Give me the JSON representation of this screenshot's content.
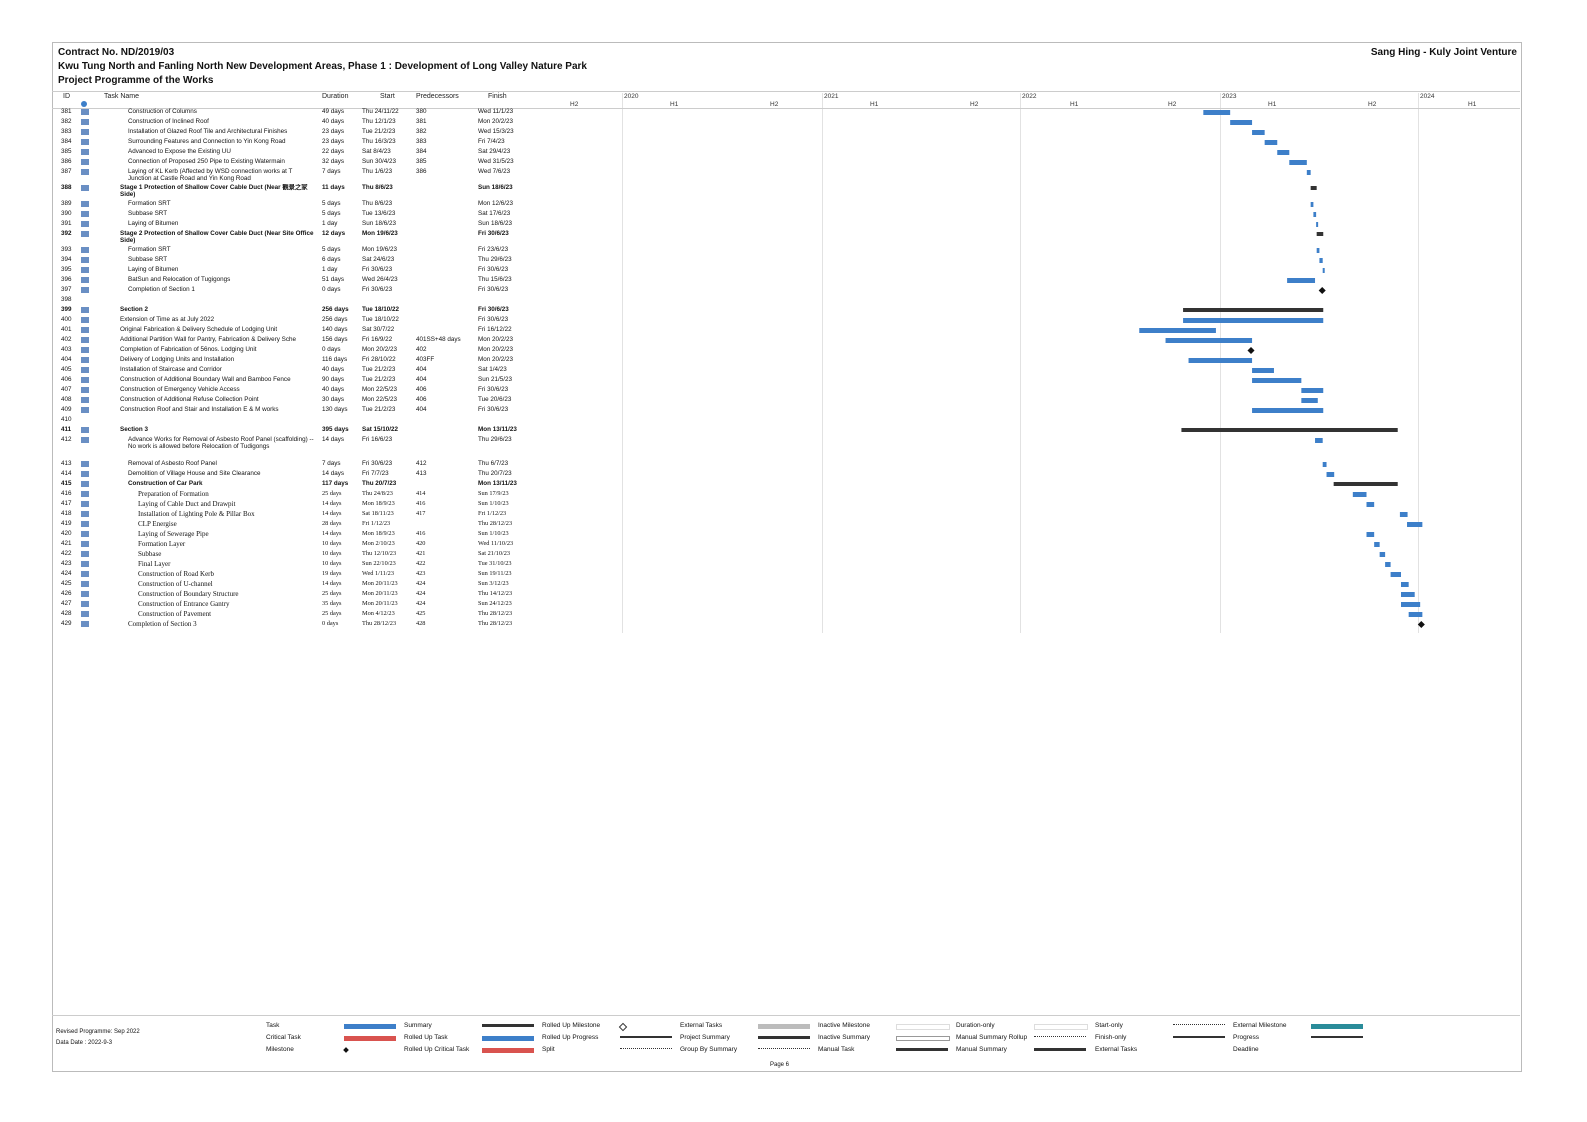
{
  "header": {
    "contract": "Contract No. ND/2019/03",
    "project": "Kwu Tung North and Fanling North New Development Areas, Phase 1 : Development of Long Valley Nature Park",
    "programme": "Project Programme of the Works",
    "company": "Sang Hing - Kuly Joint Venture"
  },
  "columns": {
    "id": "ID",
    "task_name": "Task Name",
    "duration": "Duration",
    "start": "Start",
    "predecessors": "Predecessors",
    "finish": "Finish"
  },
  "timescale": {
    "years": [
      "2020",
      "2021",
      "2022",
      "2023",
      "2024"
    ],
    "halves": [
      "H2",
      "H1",
      "H2",
      "H1",
      "H2",
      "H1",
      "H2",
      "H1",
      "H2",
      "H1"
    ]
  },
  "tasks": [
    {
      "id": "381",
      "name": "Construction of Columns",
      "level": 2,
      "dur": "49 days",
      "start": "Thu 24/11/22",
      "pred": "380",
      "finish": "Wed 11/1/23",
      "bar": {
        "s": "2022-11-24",
        "f": "2023-01-11",
        "t": "task"
      }
    },
    {
      "id": "382",
      "name": "Construction of Inclined Roof",
      "level": 2,
      "dur": "40 days",
      "start": "Thu 12/1/23",
      "pred": "381",
      "finish": "Mon 20/2/23",
      "bar": {
        "s": "2023-01-12",
        "f": "2023-02-20",
        "t": "task"
      }
    },
    {
      "id": "383",
      "name": "Installation of Glazed Roof Tile and Architectural Finishes",
      "level": 2,
      "dur": "23 days",
      "start": "Tue 21/2/23",
      "pred": "382",
      "finish": "Wed 15/3/23",
      "bar": {
        "s": "2023-02-21",
        "f": "2023-03-15",
        "t": "task"
      }
    },
    {
      "id": "384",
      "name": "Surrounding Features and Connection to Yin Kong Road",
      "level": 2,
      "dur": "23 days",
      "start": "Thu 16/3/23",
      "pred": "383",
      "finish": "Fri 7/4/23",
      "bar": {
        "s": "2023-03-16",
        "f": "2023-04-07",
        "t": "task"
      }
    },
    {
      "id": "385",
      "name": "Advanced to Expose the Existing UU",
      "level": 2,
      "dur": "22 days",
      "start": "Sat 8/4/23",
      "pred": "384",
      "finish": "Sat 29/4/23",
      "bar": {
        "s": "2023-04-08",
        "f": "2023-04-29",
        "t": "task"
      }
    },
    {
      "id": "386",
      "name": "Connection of Proposed 250 Pipe to Existing Watermain",
      "level": 2,
      "dur": "32 days",
      "start": "Sun 30/4/23",
      "pred": "385",
      "finish": "Wed 31/5/23",
      "bar": {
        "s": "2023-04-30",
        "f": "2023-05-31",
        "t": "task"
      }
    },
    {
      "id": "387",
      "name": "Laying of KL Kerb (Affected by WSD connection works at T Junction at Castle Road and Yin Kong Road",
      "level": 2,
      "dur": "7 days",
      "start": "Thu 1/6/23",
      "pred": "386",
      "finish": "Wed 7/6/23",
      "bar": {
        "s": "2023-06-01",
        "f": "2023-06-07",
        "t": "task"
      },
      "tall": true
    },
    {
      "id": "388",
      "name": "Stage 1 Protection of Shallow Cover Cable Duct (Near 觀景之家 Side)",
      "level": 1,
      "bold": true,
      "dur": "11 days",
      "start": "Thu 8/6/23",
      "pred": "",
      "finish": "Sun 18/6/23",
      "bar": {
        "s": "2023-06-08",
        "f": "2023-06-18",
        "t": "summary"
      },
      "tall": true
    },
    {
      "id": "389",
      "name": "Formation SRT",
      "level": 2,
      "dur": "5 days",
      "start": "Thu 8/6/23",
      "pred": "",
      "finish": "Mon 12/6/23",
      "bar": {
        "s": "2023-06-08",
        "f": "2023-06-12",
        "t": "task"
      }
    },
    {
      "id": "390",
      "name": "Subbase SRT",
      "level": 2,
      "dur": "5 days",
      "start": "Tue 13/6/23",
      "pred": "",
      "finish": "Sat 17/6/23",
      "bar": {
        "s": "2023-06-13",
        "f": "2023-06-17",
        "t": "task"
      }
    },
    {
      "id": "391",
      "name": "Laying of Bitumen",
      "level": 2,
      "dur": "1 day",
      "start": "Sun 18/6/23",
      "pred": "",
      "finish": "Sun 18/6/23",
      "bar": {
        "s": "2023-06-18",
        "f": "2023-06-18",
        "t": "task"
      }
    },
    {
      "id": "392",
      "name": "Stage 2 Protection of Shallow Cover Cable Duct (Near Site Office Side)",
      "level": 1,
      "bold": true,
      "dur": "12 days",
      "start": "Mon 19/6/23",
      "pred": "",
      "finish": "Fri 30/6/23",
      "bar": {
        "s": "2023-06-19",
        "f": "2023-06-30",
        "t": "summary"
      },
      "tall": true
    },
    {
      "id": "393",
      "name": "Formation SRT",
      "level": 2,
      "dur": "5 days",
      "start": "Mon 19/6/23",
      "pred": "",
      "finish": "Fri 23/6/23",
      "bar": {
        "s": "2023-06-19",
        "f": "2023-06-23",
        "t": "task"
      }
    },
    {
      "id": "394",
      "name": "Subbase SRT",
      "level": 2,
      "dur": "6 days",
      "start": "Sat 24/6/23",
      "pred": "",
      "finish": "Thu 29/6/23",
      "bar": {
        "s": "2023-06-24",
        "f": "2023-06-29",
        "t": "task"
      }
    },
    {
      "id": "395",
      "name": "Laying of Bitumen",
      "level": 2,
      "dur": "1 day",
      "start": "Fri 30/6/23",
      "pred": "",
      "finish": "Fri 30/6/23",
      "bar": {
        "s": "2023-06-30",
        "f": "2023-06-30",
        "t": "task"
      }
    },
    {
      "id": "396",
      "name": "BatSun and Relocation of Tugigongs",
      "level": 2,
      "dur": "51 days",
      "start": "Wed 26/4/23",
      "pred": "",
      "finish": "Thu 15/6/23",
      "bar": {
        "s": "2023-04-26",
        "f": "2023-06-15",
        "t": "task"
      }
    },
    {
      "id": "397",
      "name": "Completion of Section 1",
      "level": 2,
      "dur": "0 days",
      "start": "Fri 30/6/23",
      "pred": "",
      "finish": "Fri 30/6/23",
      "bar": {
        "s": "2023-06-30",
        "f": "2023-06-30",
        "t": "milestone"
      }
    },
    {
      "id": "398",
      "name": "",
      "level": 0,
      "dur": "",
      "start": "",
      "pred": "",
      "finish": ""
    },
    {
      "id": "399",
      "name": "Section 2",
      "level": 1,
      "bold": true,
      "dur": "256 days",
      "start": "Tue 18/10/22",
      "pred": "",
      "finish": "Fri 30/6/23",
      "bar": {
        "s": "2022-10-18",
        "f": "2023-06-30",
        "t": "summary"
      }
    },
    {
      "id": "400",
      "name": "Extension of Time as at July 2022",
      "level": 1,
      "dur": "256 days",
      "start": "Tue 18/10/22",
      "pred": "",
      "finish": "Fri 30/6/23",
      "bar": {
        "s": "2022-10-18",
        "f": "2023-06-30",
        "t": "task"
      }
    },
    {
      "id": "401",
      "name": "Original Fabrication & Delivery Schedule of Lodging Unit",
      "level": 1,
      "dur": "140 days",
      "start": "Sat 30/7/22",
      "pred": "",
      "finish": "Fri 16/12/22",
      "bar": {
        "s": "2022-07-30",
        "f": "2022-12-16",
        "t": "task"
      }
    },
    {
      "id": "402",
      "name": "Additional Partition Wall for Pantry, Fabrication & Delivery Sche",
      "level": 1,
      "dur": "156 days",
      "start": "Fri 16/9/22",
      "pred": "401SS+48 days",
      "finish": "Mon 20/2/23",
      "bar": {
        "s": "2022-09-16",
        "f": "2023-02-20",
        "t": "task"
      }
    },
    {
      "id": "403",
      "name": "Completion of Fabrication of 56nos. Lodging Unit",
      "level": 1,
      "dur": "0 days",
      "start": "Mon 20/2/23",
      "pred": "402",
      "finish": "Mon 20/2/23",
      "bar": {
        "s": "2023-02-20",
        "f": "2023-02-20",
        "t": "milestone"
      }
    },
    {
      "id": "404",
      "name": "Delivery of Lodging Units and Installation",
      "level": 1,
      "dur": "116 days",
      "start": "Fri 28/10/22",
      "pred": "403FF",
      "finish": "Mon 20/2/23",
      "bar": {
        "s": "2022-10-28",
        "f": "2023-02-20",
        "t": "task"
      }
    },
    {
      "id": "405",
      "name": "Installation of Staircase and Corridor",
      "level": 1,
      "dur": "40 days",
      "start": "Tue 21/2/23",
      "pred": "404",
      "finish": "Sat 1/4/23",
      "bar": {
        "s": "2023-02-21",
        "f": "2023-04-01",
        "t": "task"
      }
    },
    {
      "id": "406",
      "name": "Construction of Additional Boundary Wall and Bamboo Fence",
      "level": 1,
      "dur": "90 days",
      "start": "Tue 21/2/23",
      "pred": "404",
      "finish": "Sun 21/5/23",
      "bar": {
        "s": "2023-02-21",
        "f": "2023-05-21",
        "t": "task"
      }
    },
    {
      "id": "407",
      "name": "Construction of Emergency Vehicle Access",
      "level": 1,
      "dur": "40 days",
      "start": "Mon 22/5/23",
      "pred": "406",
      "finish": "Fri 30/6/23",
      "bar": {
        "s": "2023-05-22",
        "f": "2023-06-30",
        "t": "task"
      }
    },
    {
      "id": "408",
      "name": "Construction of Additional Refuse Collection Point",
      "level": 1,
      "dur": "30 days",
      "start": "Mon 22/5/23",
      "pred": "406",
      "finish": "Tue 20/6/23",
      "bar": {
        "s": "2023-05-22",
        "f": "2023-06-20",
        "t": "task"
      }
    },
    {
      "id": "409",
      "name": "Construction Roof and Stair and Installation E & M works",
      "level": 1,
      "dur": "130 days",
      "start": "Tue 21/2/23",
      "pred": "404",
      "finish": "Fri 30/6/23",
      "bar": {
        "s": "2023-02-21",
        "f": "2023-06-30",
        "t": "task"
      }
    },
    {
      "id": "410",
      "name": "",
      "level": 0,
      "dur": "",
      "start": "",
      "pred": "",
      "finish": ""
    },
    {
      "id": "411",
      "name": "Section 3",
      "level": 1,
      "bold": true,
      "dur": "395 days",
      "start": "Sat 15/10/22",
      "pred": "",
      "finish": "Mon 13/11/23",
      "bar": {
        "s": "2022-10-15",
        "f": "2023-11-13",
        "t": "summary"
      }
    },
    {
      "id": "412",
      "name": "Advance Works for Removal of Asbesto Roof Panel (scaffolding) -- No work is allowed before Relocation of Tudigongs",
      "level": 2,
      "dur": "14 days",
      "start": "Fri 16/6/23",
      "pred": "",
      "finish": "Thu 29/6/23",
      "bar": {
        "s": "2023-06-16",
        "f": "2023-06-29",
        "t": "task"
      },
      "tall": true,
      "taller": true
    },
    {
      "id": "413",
      "name": "Removal of Asbesto Roof Panel",
      "level": 2,
      "dur": "7 days",
      "start": "Fri 30/6/23",
      "pred": "412",
      "finish": "Thu 6/7/23",
      "bar": {
        "s": "2023-06-30",
        "f": "2023-07-06",
        "t": "task"
      }
    },
    {
      "id": "414",
      "name": "Demolition of Village House and Site Clearance",
      "level": 2,
      "dur": "14 days",
      "start": "Fri 7/7/23",
      "pred": "413",
      "finish": "Thu 20/7/23",
      "bar": {
        "s": "2023-07-07",
        "f": "2023-07-20",
        "t": "task"
      }
    },
    {
      "id": "415",
      "name": "Construction of Car Park",
      "level": 2,
      "bold": true,
      "dur": "117 days",
      "start": "Thu 20/7/23",
      "pred": "",
      "finish": "Mon 13/11/23",
      "bar": {
        "s": "2023-07-20",
        "f": "2023-11-13",
        "t": "summary"
      }
    },
    {
      "id": "416",
      "name": "Preparation of Formation",
      "level": 3,
      "serif": true,
      "dur": "25 days",
      "start": "Thu 24/8/23",
      "pred": "414",
      "finish": "Sun 17/9/23",
      "bar": {
        "s": "2023-08-24",
        "f": "2023-09-17",
        "t": "task"
      }
    },
    {
      "id": "417",
      "name": "Laying of Cable Duct and Drawpit",
      "level": 3,
      "serif": true,
      "dur": "14 days",
      "start": "Mon 18/9/23",
      "pred": "416",
      "finish": "Sun 1/10/23",
      "bar": {
        "s": "2023-09-18",
        "f": "2023-10-01",
        "t": "task"
      }
    },
    {
      "id": "418",
      "name": "Installation of Lighting Pole & Pillar Box",
      "level": 3,
      "serif": true,
      "dur": "14 days",
      "start": "Sat 18/11/23",
      "pred": "417",
      "finish": "Fri 1/12/23",
      "bar": {
        "s": "2023-11-18",
        "f": "2023-12-01",
        "t": "task"
      }
    },
    {
      "id": "419",
      "name": "CLP Energise",
      "level": 3,
      "serif": true,
      "dur": "28 days",
      "start": "Fri 1/12/23",
      "pred": "",
      "finish": "Thu 28/12/23",
      "bar": {
        "s": "2023-12-01",
        "f": "2023-12-28",
        "t": "task"
      }
    },
    {
      "id": "420",
      "name": "Laying of Sewerage Pipe",
      "level": 3,
      "serif": true,
      "dur": "14 days",
      "start": "Mon 18/9/23",
      "pred": "416",
      "finish": "Sun 1/10/23",
      "bar": {
        "s": "2023-09-18",
        "f": "2023-10-01",
        "t": "task"
      }
    },
    {
      "id": "421",
      "name": "Formation Layer",
      "level": 3,
      "serif": true,
      "dur": "10 days",
      "start": "Mon 2/10/23",
      "pred": "420",
      "finish": "Wed 11/10/23",
      "bar": {
        "s": "2023-10-02",
        "f": "2023-10-11",
        "t": "task"
      }
    },
    {
      "id": "422",
      "name": "Subbase",
      "level": 3,
      "serif": true,
      "dur": "10 days",
      "start": "Thu 12/10/23",
      "pred": "421",
      "finish": "Sat 21/10/23",
      "bar": {
        "s": "2023-10-12",
        "f": "2023-10-21",
        "t": "task"
      }
    },
    {
      "id": "423",
      "name": "Final Layer",
      "level": 3,
      "serif": true,
      "dur": "10 days",
      "start": "Sun 22/10/23",
      "pred": "422",
      "finish": "Tue 31/10/23",
      "bar": {
        "s": "2023-10-22",
        "f": "2023-10-31",
        "t": "task"
      }
    },
    {
      "id": "424",
      "name": "Construction of Road Kerb",
      "level": 3,
      "serif": true,
      "dur": "19 days",
      "start": "Wed 1/11/23",
      "pred": "423",
      "finish": "Sun 19/11/23",
      "bar": {
        "s": "2023-11-01",
        "f": "2023-11-19",
        "t": "task"
      }
    },
    {
      "id": "425",
      "name": "Construction of U-channel",
      "level": 3,
      "serif": true,
      "dur": "14 days",
      "start": "Mon 20/11/23",
      "pred": "424",
      "finish": "Sun 3/12/23",
      "bar": {
        "s": "2023-11-20",
        "f": "2023-12-03",
        "t": "task"
      }
    },
    {
      "id": "426",
      "name": "Construction of Boundary Structure",
      "level": 3,
      "serif": true,
      "dur": "25 days",
      "start": "Mon 20/11/23",
      "pred": "424",
      "finish": "Thu 14/12/23",
      "bar": {
        "s": "2023-11-20",
        "f": "2023-12-14",
        "t": "task"
      }
    },
    {
      "id": "427",
      "name": "Construction of Entrance Gantry",
      "level": 3,
      "serif": true,
      "dur": "35 days",
      "start": "Mon 20/11/23",
      "pred": "424",
      "finish": "Sun 24/12/23",
      "bar": {
        "s": "2023-11-20",
        "f": "2023-12-24",
        "t": "task"
      }
    },
    {
      "id": "428",
      "name": "Construction of Pavement",
      "level": 3,
      "serif": true,
      "dur": "25 days",
      "start": "Mon 4/12/23",
      "pred": "425",
      "finish": "Thu 28/12/23",
      "bar": {
        "s": "2023-12-04",
        "f": "2023-12-28",
        "t": "task"
      }
    },
    {
      "id": "429",
      "name": "Completion of Section 3",
      "level": 2,
      "serif": true,
      "dur": "0 days",
      "start": "Thu 28/12/23",
      "pred": "428",
      "finish": "Thu 28/12/23",
      "bar": {
        "s": "2023-12-28",
        "f": "2023-12-28",
        "t": "milestone"
      }
    }
  ],
  "footer": {
    "revised": "Revised Programme: Sep 2022",
    "data_date": "Data Date : 2022-9-3",
    "page": "Page 6"
  },
  "legend": [
    {
      "label": "Task",
      "kind": "task"
    },
    {
      "label": "Critical Task",
      "kind": "critical"
    },
    {
      "label": "Milestone",
      "kind": "milestone"
    },
    {
      "label": "Summary",
      "kind": "summary"
    },
    {
      "label": "Rolled Up Task",
      "kind": "task"
    },
    {
      "label": "Rolled Up Critical Task",
      "kind": "critical"
    },
    {
      "label": "Rolled Up Milestone",
      "kind": "diamond-outline"
    },
    {
      "label": "Rolled Up Progress",
      "kind": "line"
    },
    {
      "label": "Split",
      "kind": "dots"
    },
    {
      "label": "External Tasks",
      "kind": "grey"
    },
    {
      "label": "Project Summary",
      "kind": "summary"
    },
    {
      "label": "Group By Summary",
      "kind": "dots"
    },
    {
      "label": "Inactive Milestone",
      "kind": "hollow"
    },
    {
      "label": "Inactive Summary",
      "kind": "summary-hollow"
    },
    {
      "label": "Manual Task",
      "kind": "summary"
    },
    {
      "label": "Duration-only",
      "kind": "hollow"
    },
    {
      "label": "Manual Summary Rollup",
      "kind": "dots"
    },
    {
      "label": "Manual Summary",
      "kind": "summary"
    },
    {
      "label": "Start-only",
      "kind": "dots"
    },
    {
      "label": "Finish-only",
      "kind": "line"
    },
    {
      "label": "External Tasks",
      "kind": "blank"
    },
    {
      "label": "External Milestone",
      "kind": "teal"
    },
    {
      "label": "Progress",
      "kind": "line"
    },
    {
      "label": "Deadline",
      "kind": "blank"
    }
  ],
  "colors": {
    "task": "#3d7fc9",
    "summary": "#333333",
    "critical": "#d9534f",
    "grey": "#bcbcbc",
    "teal": "#2a8c9a"
  }
}
